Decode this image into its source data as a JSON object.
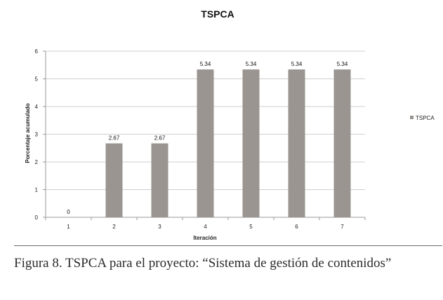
{
  "chart_data": {
    "type": "bar",
    "title": "TSPCA",
    "xlabel": "Iteración",
    "ylabel": "Porcentaje acumulado",
    "categories": [
      "1",
      "2",
      "3",
      "4",
      "5",
      "6",
      "7"
    ],
    "series": [
      {
        "name": "TSPCA",
        "values": [
          0,
          2.67,
          2.67,
          5.34,
          5.34,
          5.34,
          5.34
        ]
      }
    ],
    "data_labels": [
      "0",
      "2.67",
      "2.67",
      "5.34",
      "5.34",
      "5.34",
      "5.34"
    ],
    "ylim": [
      0,
      6
    ],
    "yticks": [
      "0",
      "1",
      "2",
      "3",
      "4",
      "5",
      "6"
    ],
    "grid": true,
    "legend_position": "right",
    "bar_color": "#9a9591",
    "grid_color": "#cfcfcf"
  },
  "caption": "Figura 8. TSPCA para el proyecto: “Sistema de gestión de contenidos”"
}
